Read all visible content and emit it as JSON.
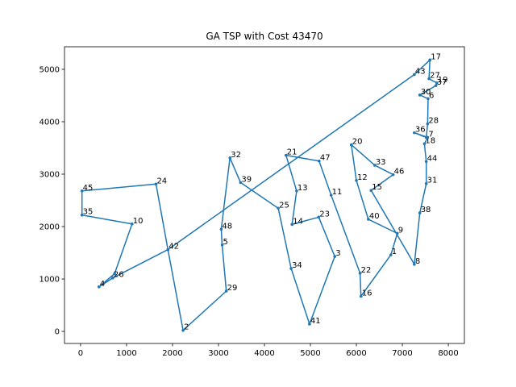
{
  "chart_data": {
    "type": "line",
    "title": "GA  TSP with Cost 43470",
    "xlabel": "",
    "ylabel": "",
    "xlim": [
      -350,
      8350
    ],
    "ylim": [
      -230,
      5430
    ],
    "xticks": [
      0,
      1000,
      2000,
      3000,
      4000,
      5000,
      6000,
      7000,
      8000
    ],
    "yticks": [
      0,
      1000,
      2000,
      3000,
      4000,
      5000
    ],
    "line_color": "#1f77b4",
    "grid": false,
    "route": [
      {
        "label": "17",
        "x": 7600,
        "y": 5180
      },
      {
        "label": "43",
        "x": 7260,
        "y": 4900
      },
      {
        "label": "42",
        "x": 1900,
        "y": 1560
      },
      {
        "label": "26",
        "x": 700,
        "y": 1020
      },
      {
        "label": "4",
        "x": 400,
        "y": 850
      },
      {
        "label": "",
        "x": 740,
        "y": 1100
      },
      {
        "label": "10",
        "x": 1120,
        "y": 2050
      },
      {
        "label": "35",
        "x": 30,
        "y": 2220
      },
      {
        "label": "45",
        "x": 30,
        "y": 2680
      },
      {
        "label": "24",
        "x": 1640,
        "y": 2810
      },
      {
        "label": "",
        "x": 1900,
        "y": 1560
      },
      {
        "label": "2",
        "x": 2230,
        "y": 20
      },
      {
        "label": "29",
        "x": 3170,
        "y": 770
      },
      {
        "label": "5",
        "x": 3080,
        "y": 1650
      },
      {
        "label": "48",
        "x": 3060,
        "y": 1950
      },
      {
        "label": "32",
        "x": 3250,
        "y": 3310
      },
      {
        "label": "39",
        "x": 3480,
        "y": 2840
      },
      {
        "label": "25",
        "x": 4300,
        "y": 2350
      },
      {
        "label": "34",
        "x": 4580,
        "y": 1200
      },
      {
        "label": "41",
        "x": 4980,
        "y": 140
      },
      {
        "label": "3",
        "x": 5530,
        "y": 1430
      },
      {
        "label": "23",
        "x": 5180,
        "y": 2180
      },
      {
        "label": "14",
        "x": 4600,
        "y": 2040
      },
      {
        "label": "13",
        "x": 4700,
        "y": 2680
      },
      {
        "label": "21",
        "x": 4470,
        "y": 3360
      },
      {
        "label": "47",
        "x": 5190,
        "y": 3250
      },
      {
        "label": "11",
        "x": 5450,
        "y": 2600
      },
      {
        "label": "22",
        "x": 6080,
        "y": 1110
      },
      {
        "label": "16",
        "x": 6100,
        "y": 670
      },
      {
        "label": "1",
        "x": 6750,
        "y": 1460
      },
      {
        "label": "9",
        "x": 6890,
        "y": 1870
      },
      {
        "label": "40",
        "x": 6260,
        "y": 2140
      },
      {
        "label": "12",
        "x": 6000,
        "y": 2880
      },
      {
        "label": "20",
        "x": 5890,
        "y": 3560
      },
      {
        "label": "33",
        "x": 6400,
        "y": 3170
      },
      {
        "label": "46",
        "x": 6800,
        "y": 2990
      },
      {
        "label": "15",
        "x": 6320,
        "y": 2690
      },
      {
        "label": "8",
        "x": 7260,
        "y": 1280
      },
      {
        "label": "38",
        "x": 7380,
        "y": 2260
      },
      {
        "label": "31",
        "x": 7520,
        "y": 2820
      },
      {
        "label": "44",
        "x": 7520,
        "y": 3240
      },
      {
        "label": "18",
        "x": 7480,
        "y": 3580
      },
      {
        "label": "7",
        "x": 7550,
        "y": 3700
      },
      {
        "label": "36",
        "x": 7260,
        "y": 3790
      },
      {
        "label": "",
        "x": 7520,
        "y": 3700
      },
      {
        "label": "28",
        "x": 7550,
        "y": 3960
      },
      {
        "label": "6",
        "x": 7560,
        "y": 4440
      },
      {
        "label": "30",
        "x": 7380,
        "y": 4510
      },
      {
        "label": "37",
        "x": 7730,
        "y": 4690
      },
      {
        "label": "19",
        "x": 7750,
        "y": 4740
      },
      {
        "label": "27",
        "x": 7580,
        "y": 4820
      },
      {
        "label": "",
        "x": 7600,
        "y": 5180
      }
    ]
  }
}
